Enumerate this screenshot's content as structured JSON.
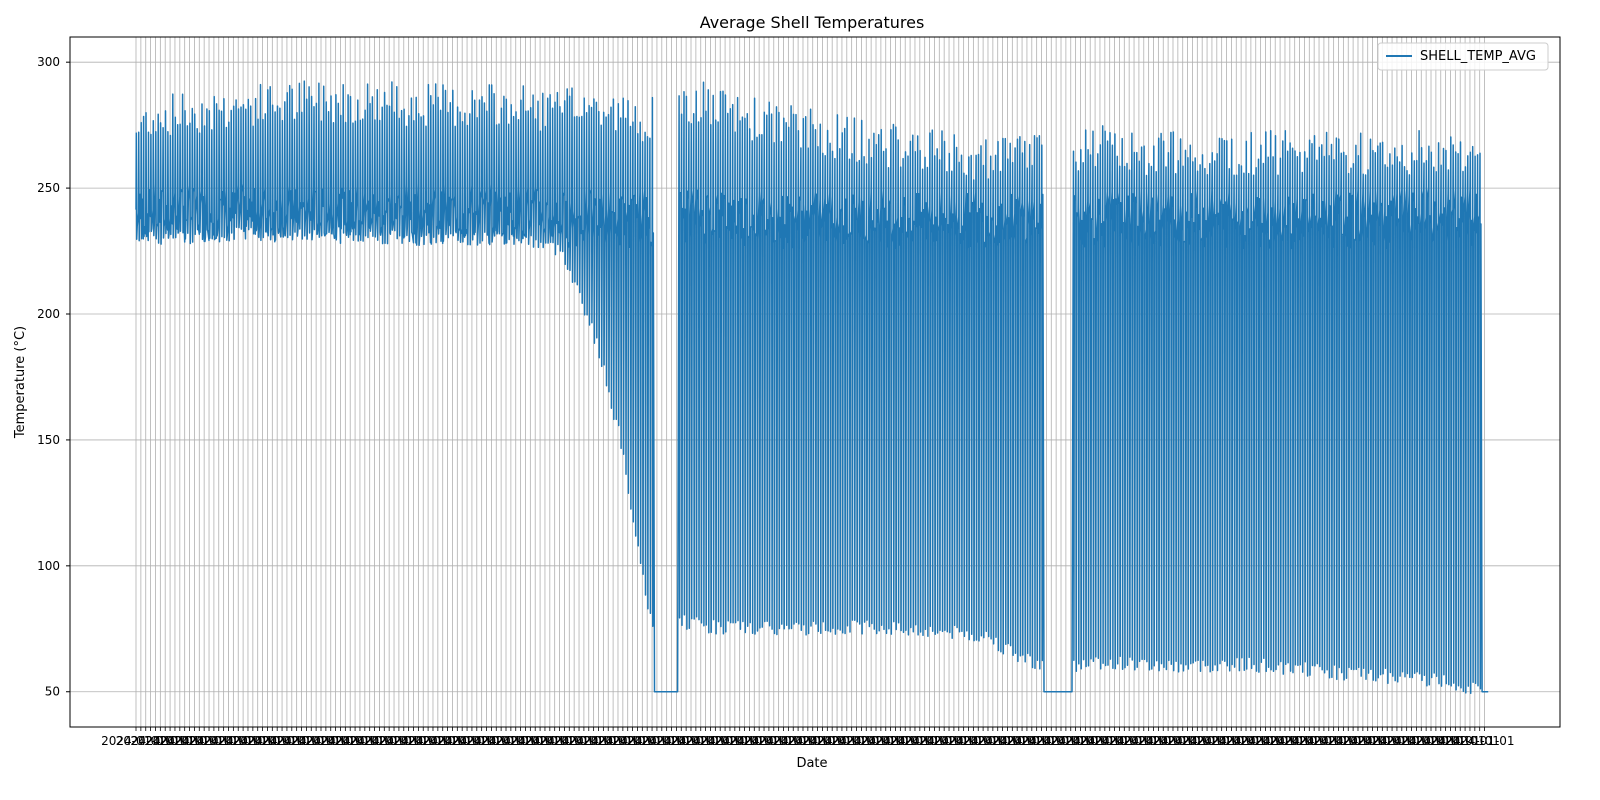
{
  "chart_data": {
    "type": "line",
    "title": "Average Shell Temperatures",
    "xlabel": "Date",
    "ylabel": "Temperature (°C)",
    "ylim": [
      36,
      310
    ],
    "yticks": [
      50,
      100,
      150,
      200,
      250,
      300
    ],
    "grid": true,
    "legend_position": "top-right",
    "series": [
      {
        "name": "SHELL_TEMP_AVG",
        "color": "#1f77b4",
        "envelope": {
          "x_index": [
            0,
            5,
            40,
            80,
            120,
            160,
            175,
            185,
            190,
            200,
            205,
            212,
            213,
            222,
            223,
            233,
            234,
            240,
            260,
            300,
            330,
            340,
            350,
            360,
            372,
            373,
            384,
            385,
            395,
            410,
            430,
            450,
            470,
            490,
            500,
            520,
            540,
            552,
            553,
            556
          ],
          "upper": [
            272,
            278,
            282,
            285,
            283,
            282,
            280,
            284,
            280,
            279,
            276,
            279,
            50,
            50,
            278,
            285,
            282,
            280,
            276,
            268,
            264,
            262,
            260,
            262,
            266,
            50,
            50,
            265,
            266,
            264,
            264,
            264,
            264,
            264,
            264,
            264,
            264,
            262,
            50,
            50
          ],
          "middle": [
            240,
            240,
            240,
            240,
            240,
            240,
            238,
            238,
            238,
            238,
            238,
            238,
            50,
            50,
            240,
            240,
            240,
            240,
            238,
            238,
            238,
            238,
            238,
            238,
            238,
            50,
            50,
            238,
            238,
            238,
            238,
            238,
            238,
            238,
            238,
            238,
            238,
            238,
            50,
            50
          ],
          "lower": [
            232,
            230,
            232,
            232,
            230,
            230,
            225,
            200,
            185,
            145,
            110,
            75,
            50,
            50,
            78,
            77,
            76,
            76,
            75,
            76,
            74,
            73,
            72,
            65,
            61,
            50,
            50,
            60,
            62,
            61,
            60,
            61,
            60,
            58,
            57,
            56,
            54,
            50,
            50,
            50
          ]
        },
        "values_note_points": {
          "first": 257,
          "peak": 298
        }
      }
    ],
    "x_tick_count": 556,
    "x_tick_label_sample": "2024-01-01"
  }
}
